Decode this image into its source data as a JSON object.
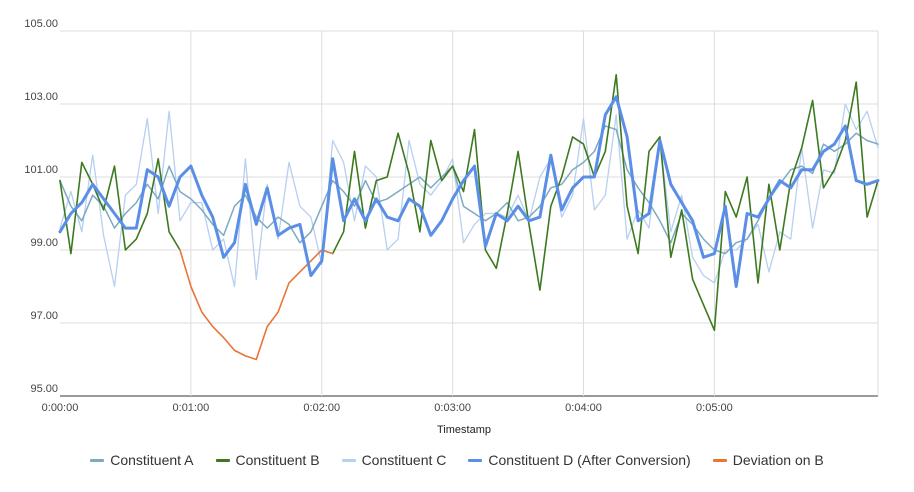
{
  "chart_data": {
    "type": "line",
    "title": "",
    "xlabel": "Timestamp",
    "ylabel": "",
    "ylim": [
      95,
      105
    ],
    "xlim": [
      0,
      375
    ],
    "x_unit": "seconds",
    "yticks": [
      "95.00",
      "97.00",
      "99.00",
      "101.00",
      "103.00",
      "105.00"
    ],
    "xticks": [
      "0:00:00",
      "0:01:00",
      "0:02:00",
      "0:03:00",
      "0:04:00",
      "0:05:00"
    ],
    "grid": true,
    "legend_position": "bottom",
    "x": [
      0,
      5,
      10,
      15,
      20,
      25,
      30,
      35,
      40,
      45,
      50,
      55,
      60,
      65,
      70,
      75,
      80,
      85,
      90,
      95,
      100,
      105,
      110,
      115,
      120,
      125,
      130,
      135,
      140,
      145,
      150,
      155,
      160,
      165,
      170,
      175,
      180,
      185,
      190,
      195,
      200,
      205,
      210,
      215,
      220,
      225,
      230,
      235,
      240,
      245,
      250,
      255,
      260,
      265,
      270,
      275,
      280,
      285,
      290,
      295,
      300,
      305,
      310,
      315,
      320,
      325,
      330,
      335,
      340,
      345,
      350,
      355,
      360,
      365,
      370,
      375
    ],
    "series": [
      {
        "name": "Constituent A",
        "color": "#7baac2",
        "width": 1.5,
        "values": [
          100.9,
          100.2,
          99.8,
          100.5,
          100.2,
          99.6,
          100.0,
          100.3,
          100.8,
          100.4,
          101.3,
          100.6,
          100.4,
          100.1,
          99.7,
          99.4,
          100.2,
          100.5,
          99.9,
          99.6,
          99.9,
          99.7,
          99.2,
          99.5,
          100.2,
          100.9,
          100.6,
          100.2,
          100.9,
          100.3,
          100.4,
          100.6,
          100.8,
          101.0,
          100.7,
          101.0,
          101.3,
          100.2,
          100.0,
          99.8,
          100.0,
          100.3,
          99.8,
          99.9,
          100.2,
          100.7,
          100.8,
          101.2,
          101.4,
          101.7,
          102.4,
          102.3,
          101.2,
          100.7,
          100.3,
          99.8,
          99.2,
          100.0,
          99.7,
          99.3,
          99.0,
          98.9,
          99.2,
          99.3,
          99.8,
          100.4,
          100.8,
          101.2,
          101.3,
          101.1,
          101.9,
          101.7,
          101.9,
          102.2,
          102.0,
          101.9
        ]
      },
      {
        "name": "Constituent B",
        "color": "#3d7a1f",
        "width": 1.6,
        "values": [
          100.9,
          98.9,
          101.4,
          100.8,
          100.1,
          101.3,
          99.0,
          99.3,
          100.0,
          101.5,
          99.5,
          99.0,
          null,
          null,
          null,
          null,
          null,
          null,
          null,
          null,
          null,
          null,
          null,
          null,
          null,
          98.9,
          99.5,
          101.7,
          99.6,
          100.9,
          101.0,
          102.2,
          101.1,
          99.5,
          102.0,
          100.9,
          101.3,
          100.6,
          102.3,
          99.0,
          98.5,
          100.0,
          101.7,
          99.7,
          97.9,
          100.2,
          101.0,
          102.1,
          101.9,
          101.0,
          101.7,
          103.8,
          100.2,
          98.9,
          101.7,
          102.1,
          98.8,
          100.1,
          98.2,
          97.5,
          96.8,
          100.6,
          99.9,
          101.0,
          98.1,
          100.8,
          99.0,
          100.9,
          101.8,
          103.1,
          100.7,
          101.2,
          102.0,
          103.6,
          99.9,
          100.9
        ]
      },
      {
        "name": "Constituent C",
        "color": "#b7cff0",
        "width": 1.3,
        "values": [
          99.6,
          100.6,
          99.5,
          101.6,
          99.4,
          98.0,
          100.5,
          100.8,
          102.6,
          100.0,
          102.8,
          99.8,
          100.3,
          100.3,
          99.0,
          99.3,
          98.0,
          101.5,
          98.2,
          100.8,
          99.3,
          101.4,
          100.2,
          99.9,
          98.6,
          102.0,
          101.4,
          99.8,
          101.3,
          101.0,
          99.0,
          99.3,
          102.0,
          100.8,
          100.5,
          100.9,
          101.5,
          99.2,
          99.7,
          100.0,
          100.0,
          99.9,
          100.5,
          99.8,
          101.0,
          101.5,
          99.9,
          100.5,
          102.6,
          100.1,
          100.5,
          102.7,
          99.3,
          100.1,
          99.6,
          102.0,
          99.5,
          100.5,
          98.8,
          98.3,
          98.1,
          99.0,
          99.0,
          99.3,
          99.7,
          98.4,
          99.5,
          99.3,
          101.8,
          99.6,
          101.2,
          101.1,
          103.0,
          102.3,
          102.8,
          101.8
        ]
      },
      {
        "name": "Constituent D (After Conversion)",
        "color": "#5b8ee6",
        "width": 3,
        "values": [
          99.5,
          100.0,
          100.3,
          100.8,
          100.4,
          100.0,
          99.6,
          99.6,
          101.2,
          101.0,
          100.2,
          101.0,
          101.3,
          100.5,
          99.9,
          98.8,
          99.2,
          100.8,
          99.7,
          100.7,
          99.4,
          99.6,
          99.7,
          98.3,
          98.7,
          101.5,
          99.8,
          100.4,
          99.8,
          100.4,
          99.9,
          99.8,
          100.4,
          100.2,
          99.4,
          99.8,
          100.4,
          100.9,
          101.3,
          99.1,
          100.0,
          99.8,
          100.2,
          99.8,
          99.9,
          101.6,
          100.1,
          100.7,
          101.0,
          101.0,
          102.7,
          103.2,
          102.1,
          99.8,
          100.0,
          102.0,
          100.8,
          100.3,
          99.8,
          98.8,
          98.9,
          100.2,
          98.0,
          100.0,
          99.9,
          100.4,
          100.9,
          100.7,
          101.2,
          101.2,
          101.7,
          101.9,
          102.4,
          100.9,
          100.8,
          100.9
        ]
      },
      {
        "name": "Deviation on B",
        "color": "#e8753a",
        "width": 1.6,
        "values": [
          null,
          null,
          null,
          null,
          null,
          null,
          null,
          null,
          null,
          null,
          null,
          99.0,
          98.0,
          97.3,
          96.9,
          96.6,
          96.25,
          96.1,
          96.0,
          96.9,
          97.3,
          98.1,
          98.4,
          98.7,
          99.0,
          98.9,
          null,
          null,
          null,
          null,
          null,
          null,
          null,
          null,
          null,
          null,
          null,
          null,
          null,
          null,
          null,
          null,
          null,
          null,
          null,
          null,
          null,
          null,
          null,
          null,
          null,
          null,
          null,
          null,
          null,
          null,
          null,
          null,
          null,
          null,
          null,
          null,
          null,
          null,
          null,
          null,
          null,
          null,
          null,
          null,
          null,
          null,
          null,
          null,
          null,
          null
        ]
      }
    ]
  }
}
